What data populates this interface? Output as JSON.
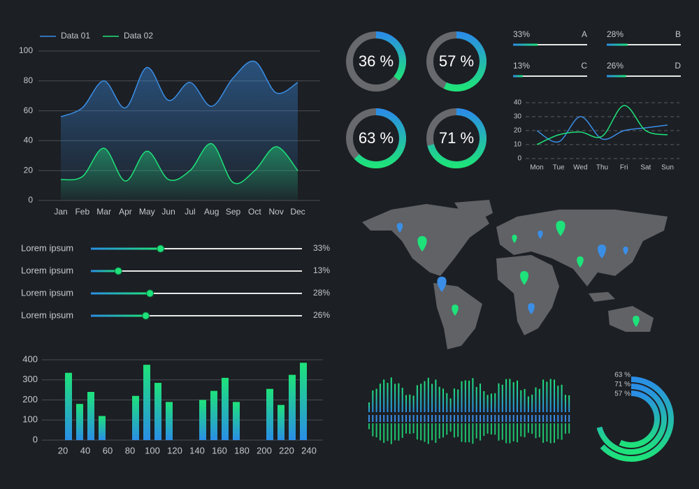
{
  "chart_data": [
    {
      "type": "area",
      "categories": [
        "Jan",
        "Feb",
        "Mar",
        "Apr",
        "May",
        "Jun",
        "Jul",
        "Aug",
        "Sep",
        "Oct",
        "Nov",
        "Dec"
      ],
      "series": [
        {
          "name": "Data 01",
          "color": "#3a8ee6",
          "values": [
            56,
            62,
            80,
            62,
            89,
            67,
            79,
            63,
            82,
            93,
            72,
            79
          ]
        },
        {
          "name": "Data 02",
          "color": "#1ee27a",
          "values": [
            14,
            16,
            35,
            13,
            33,
            14,
            20,
            38,
            12,
            20,
            36,
            20
          ]
        }
      ],
      "ylim": [
        0,
        100
      ],
      "yticks": [
        0,
        20,
        40,
        60,
        80,
        100
      ],
      "grid": true,
      "legend": "top-left"
    },
    {
      "type": "slider",
      "categories": [
        "Lorem ipsum",
        "Lorem ipsum",
        "Lorem ipsum",
        "Lorem ipsum"
      ],
      "values": [
        33,
        13,
        28,
        26
      ],
      "value_labels": [
        "33%",
        "13%",
        "28%",
        "26%"
      ],
      "color": "#1ee27a"
    },
    {
      "type": "bar",
      "x": [
        25,
        35,
        45,
        55,
        85,
        95,
        105,
        115,
        145,
        155,
        165,
        175,
        205,
        215,
        225,
        235
      ],
      "values": [
        335,
        180,
        240,
        120,
        220,
        375,
        285,
        190,
        200,
        245,
        310,
        190,
        255,
        175,
        325,
        385
      ],
      "xlim": [
        0,
        250
      ],
      "xticks": [
        20,
        40,
        60,
        80,
        100,
        120,
        140,
        160,
        180,
        200,
        220,
        240
      ],
      "ylim": [
        0,
        400
      ],
      "yticks": [
        0,
        100,
        200,
        300,
        400
      ],
      "grid": true,
      "color": "#1ee27a"
    },
    {
      "type": "donut",
      "values": [
        36,
        57,
        63,
        71
      ],
      "value_labels": [
        "36 %",
        "57 %",
        "63 %",
        "71 %"
      ]
    },
    {
      "type": "meter",
      "categories": [
        "A",
        "B",
        "C",
        "D"
      ],
      "values": [
        33,
        28,
        13,
        26
      ],
      "value_labels": [
        "33%",
        "28%",
        "13%",
        "26%"
      ]
    },
    {
      "type": "line",
      "categories": [
        "Mon",
        "Tue",
        "Wed",
        "Thu",
        "Fri",
        "Sat",
        "Sun"
      ],
      "series": [
        {
          "color": "#3a8ee6",
          "values": [
            20,
            12,
            30,
            14,
            20,
            22,
            24
          ]
        },
        {
          "color": "#1ee27a",
          "values": [
            10,
            17,
            19,
            16,
            38,
            20,
            17
          ]
        }
      ],
      "ylim": [
        0,
        40
      ],
      "yticks": [
        0,
        10,
        20,
        30,
        40
      ],
      "grid": true
    },
    {
      "type": "radial",
      "values": [
        63,
        71,
        57
      ],
      "value_labels": [
        "63 %",
        "71 %",
        "57 %"
      ]
    }
  ]
}
